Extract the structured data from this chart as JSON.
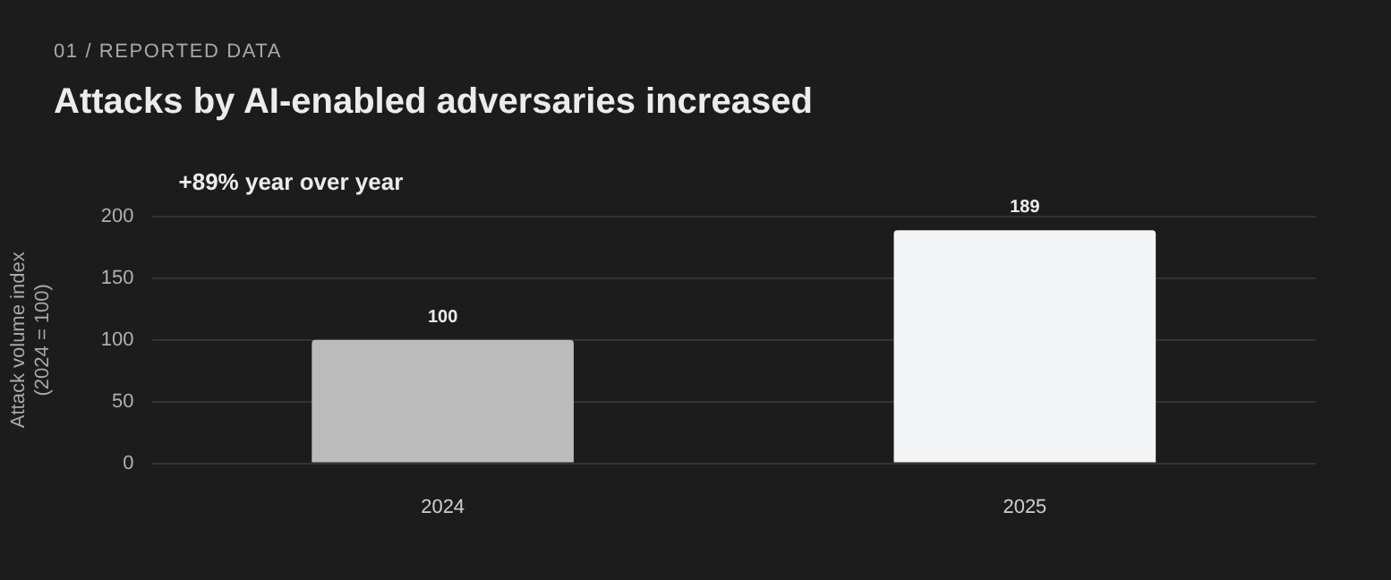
{
  "chart_data": {
    "type": "bar",
    "title": "Attacks by AI-enabled adversaries increased",
    "ylabel": "Attack volume index\n(2024 = 100)",
    "annotations": [
      "01 / REPORTED DATA",
      "+89% year over year"
    ],
    "categories": [
      "2024",
      "2025"
    ],
    "values": [
      100,
      189
    ],
    "colors": [
      "#bbbbbb",
      "#f3f4f6"
    ],
    "ylim": [
      0,
      200
    ],
    "yticks": [
      0,
      50,
      100,
      150,
      200
    ],
    "grid": "y",
    "data_labels": true
  }
}
